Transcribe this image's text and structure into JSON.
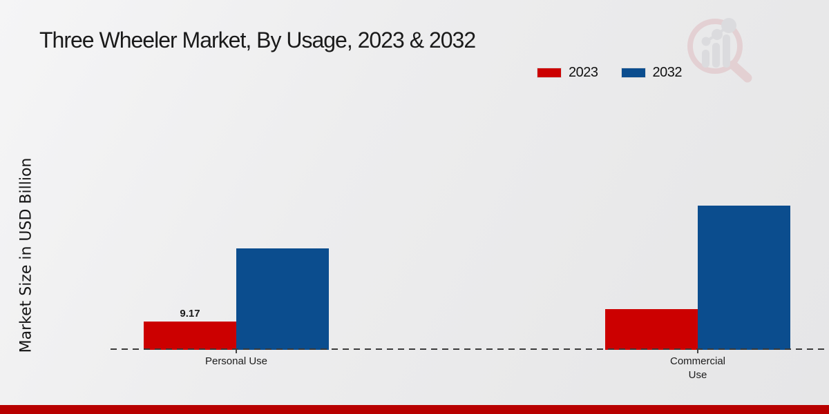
{
  "title": "Three Wheeler Market, By Usage, 2023 & 2032",
  "ylabel": "Market Size in USD Billion",
  "legend": [
    {
      "label": "2023",
      "color": "#cc0000"
    },
    {
      "label": "2032",
      "color": "#0b4d8e"
    }
  ],
  "colors": {
    "series_2023": "#cc0000",
    "series_2032": "#0b4d8e",
    "footer_strip": "#b80000",
    "baseline": "#3a3a3a",
    "background": "#ececed"
  },
  "logo": {
    "icon": "bar-chart-magnifier-watermark"
  },
  "chart_data": {
    "type": "bar",
    "categories": [
      "Personal Use",
      "Commercial Use"
    ],
    "series": [
      {
        "name": "2023",
        "color": "#cc0000",
        "values": [
          9.17,
          13.2
        ],
        "labels": [
          "9.17",
          ""
        ]
      },
      {
        "name": "2032",
        "color": "#0b4d8e",
        "values": [
          32.9,
          46.7
        ],
        "labels": [
          "",
          ""
        ]
      }
    ],
    "title": "Three Wheeler Market, By Usage, 2023 & 2032",
    "xlabel": "",
    "ylabel": "Market Size in USD Billion",
    "ylim": [
      0,
      50
    ],
    "grid": false,
    "legend_position": "top-right",
    "baseline_style": "dashed",
    "value_labels_shown": [
      "Personal Use 2023 = 9.17"
    ]
  }
}
